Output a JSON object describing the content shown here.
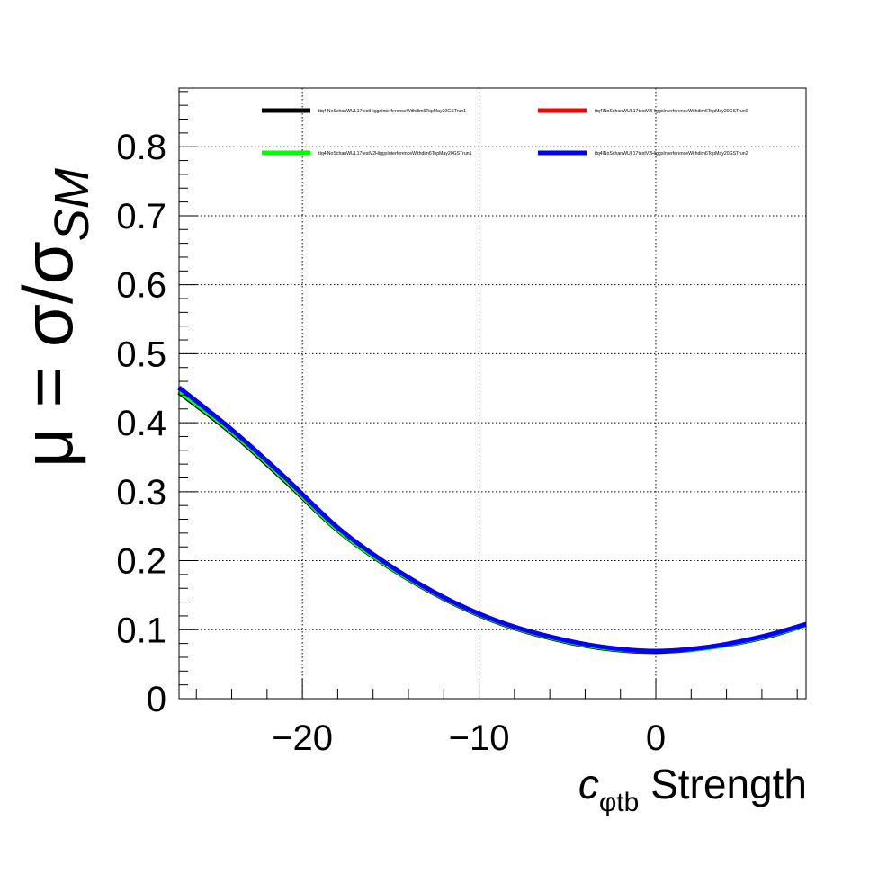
{
  "chart_data": {
    "type": "line",
    "xlabel_main": "c",
    "xlabel_sub": "φtb",
    "xlabel_suffix": "Strength",
    "ylabel_parts": {
      "mu": "μ",
      "eq": " = ",
      "sigma1": "σ",
      "slash": "/",
      "sigma2": "σ",
      "sub": "SM"
    },
    "xlim": [
      -26.98,
      8.5
    ],
    "ylim": [
      0,
      0.885
    ],
    "x_ticks": [
      {
        "value": -20,
        "label": "−20"
      },
      {
        "value": -10,
        "label": "−10"
      },
      {
        "value": 0,
        "label": "0"
      }
    ],
    "y_ticks": [
      {
        "value": 0,
        "label": "0"
      },
      {
        "value": 0.1,
        "label": "0.1"
      },
      {
        "value": 0.2,
        "label": "0.2"
      },
      {
        "value": 0.3,
        "label": "0.3"
      },
      {
        "value": 0.4,
        "label": "0.4"
      },
      {
        "value": 0.5,
        "label": "0.5"
      },
      {
        "value": 0.6,
        "label": "0.6"
      },
      {
        "value": 0.7,
        "label": "0.7"
      },
      {
        "value": 0.8,
        "label": "0.8"
      }
    ],
    "grid": true,
    "legend_position": "top",
    "series": [
      {
        "name": "ttq4lNoSchanWUL17testHiggsInterferenceWithdim6TopMay20GSTrun1",
        "color": "#000000",
        "x": [
          -26.98,
          -24,
          -21,
          -18,
          -15,
          -12,
          -9,
          -6,
          -3,
          0,
          3,
          6,
          8.5
        ],
        "y": [
          0.444,
          0.385,
          0.316,
          0.244,
          0.189,
          0.145,
          0.111,
          0.088,
          0.073,
          0.068,
          0.074,
          0.088,
          0.107
        ]
      },
      {
        "name": "ttq4lNoSchanWUL17testV2HiggsInterferenceWithdim6TopMay20GSTrun0",
        "color": "#ff0000",
        "x": [
          -26.98,
          -24,
          -21,
          -18,
          -15,
          -12,
          -9,
          -6,
          -3,
          0,
          3,
          6,
          8.5
        ],
        "y": [
          0.45,
          0.388,
          0.32,
          0.247,
          0.191,
          0.146,
          0.112,
          0.089,
          0.074,
          0.069,
          0.075,
          0.089,
          0.108
        ]
      },
      {
        "name": "ttq4lNoSchanWUL17testV2HiggsInterferenceWithdim6TopMay20GSTrun1",
        "color": "#00ff00",
        "x": [
          -26.98,
          -24,
          -21,
          -18,
          -15,
          -12,
          -9,
          -6,
          -3,
          0,
          3,
          6,
          8.5
        ],
        "y": [
          0.446,
          0.387,
          0.318,
          0.245,
          0.19,
          0.146,
          0.112,
          0.089,
          0.074,
          0.069,
          0.074,
          0.089,
          0.107
        ]
      },
      {
        "name": "ttq4lNoSchanWUL17testV2HiggsInterferenceWithdim6TopMay20GSTrun2",
        "color": "#0000ff",
        "x": [
          -26.98,
          -24,
          -21,
          -18,
          -15,
          -12,
          -9,
          -6,
          -3,
          0,
          3,
          6,
          8.5
        ],
        "y": [
          0.451,
          0.39,
          0.321,
          0.248,
          0.192,
          0.147,
          0.113,
          0.09,
          0.075,
          0.069,
          0.075,
          0.09,
          0.108
        ]
      }
    ]
  }
}
